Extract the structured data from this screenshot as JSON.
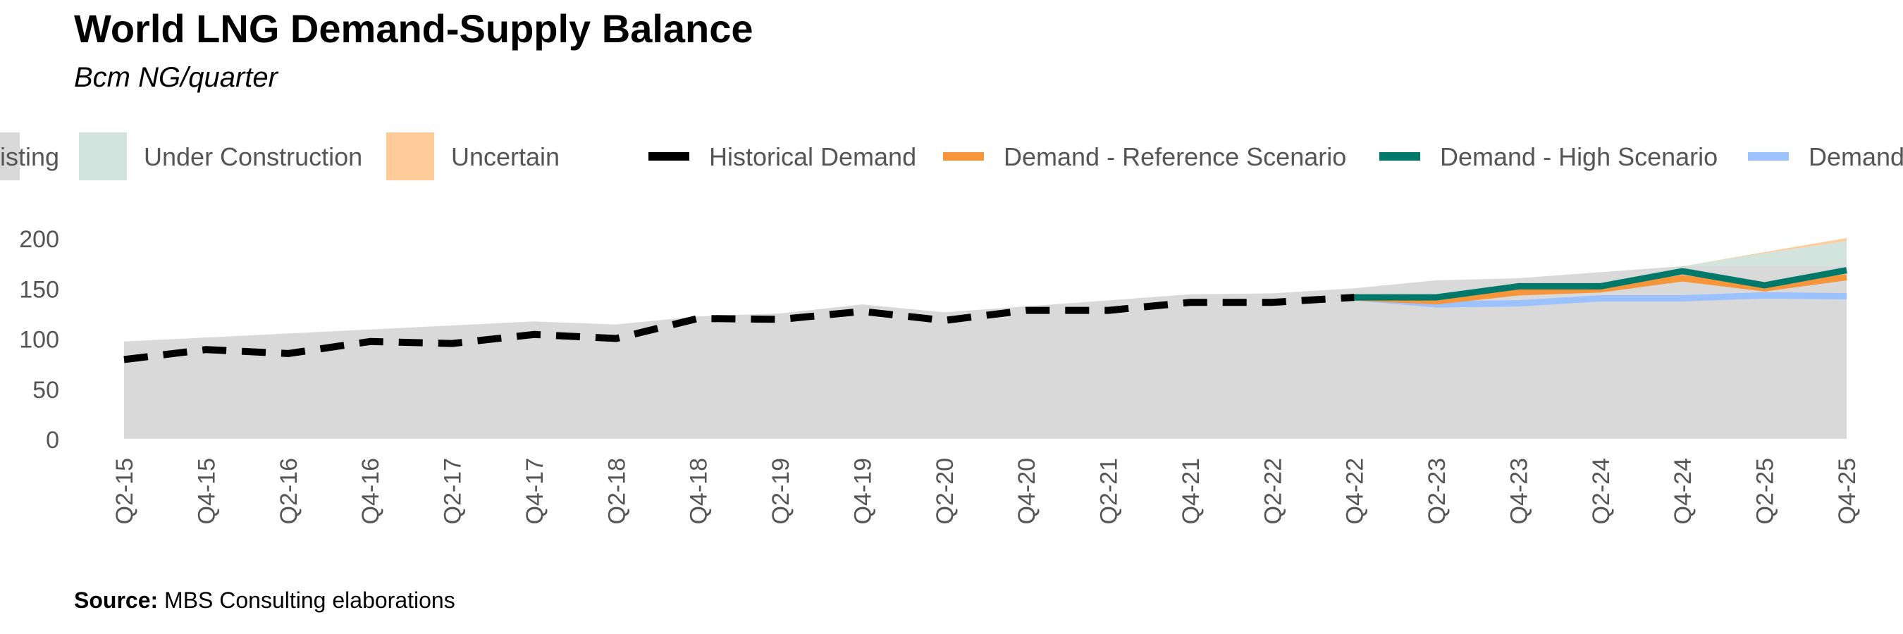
{
  "title": "World LNG Demand-Supply Balance",
  "subtitle": "Bcm NG/quarter",
  "source": {
    "label": "Source:",
    "text": "MBS Consulting elaborations"
  },
  "chart_data": {
    "type": "area",
    "ylim": [
      0,
      200
    ],
    "yticks": [
      0,
      50,
      100,
      150,
      200
    ],
    "grid": false,
    "legend_position": "top",
    "categories": [
      "Q2-15",
      "Q4-15",
      "Q2-16",
      "Q4-16",
      "Q2-17",
      "Q4-17",
      "Q2-18",
      "Q4-18",
      "Q2-19",
      "Q4-19",
      "Q2-20",
      "Q4-20",
      "Q2-21",
      "Q4-21",
      "Q2-22",
      "Q4-22",
      "Q2-23",
      "Q4-23",
      "Q2-24",
      "Q4-24",
      "Q2-25",
      "Q4-25"
    ],
    "legend": [
      {
        "label": "Existing",
        "kind": "area",
        "color": "#d9d9d9"
      },
      {
        "label": "Under Construction",
        "kind": "area",
        "color": "#d2e4dd"
      },
      {
        "label": "Uncertain",
        "kind": "area",
        "color": "#ffcc99"
      },
      {
        "label": "Historical Demand",
        "kind": "line",
        "color": "#000000"
      },
      {
        "label": "Demand - Reference Scenario",
        "kind": "line",
        "color": "#f7953b"
      },
      {
        "label": "Demand - High Scenario",
        "kind": "line",
        "color": "#00796b"
      },
      {
        "label": "Demand",
        "kind": "line",
        "color": "#9cc1ff"
      }
    ],
    "supply": {
      "existing": [
        97,
        101,
        105,
        109,
        113,
        117,
        114,
        122,
        125,
        134,
        126,
        132,
        138,
        144,
        145,
        150,
        158,
        160,
        166,
        172,
        172,
        172
      ],
      "under_construction_top": [
        97,
        101,
        105,
        109,
        113,
        117,
        114,
        122,
        125,
        134,
        126,
        132,
        138,
        144,
        145,
        150,
        158,
        160,
        166,
        172,
        185,
        197
      ],
      "uncertain_top": [
        97,
        101,
        105,
        109,
        113,
        117,
        114,
        122,
        125,
        134,
        126,
        132,
        138,
        144,
        145,
        150,
        158,
        160,
        166,
        172,
        186,
        200
      ]
    },
    "series": [
      {
        "name": "Historical Demand",
        "color": "#000000",
        "dash": true,
        "values": [
          79,
          89,
          85,
          97,
          95,
          104,
          100,
          120,
          119,
          127,
          118,
          128,
          128,
          136,
          136,
          141,
          null,
          null,
          null,
          null,
          null,
          null
        ]
      },
      {
        "name": "Demand",
        "color": "#9cc1ff",
        "dash": false,
        "values": [
          null,
          null,
          null,
          null,
          null,
          null,
          null,
          null,
          null,
          null,
          null,
          null,
          null,
          null,
          null,
          141,
          134,
          135,
          140,
          140,
          143,
          142
        ]
      },
      {
        "name": "Demand - Reference Scenario",
        "color": "#f7953b",
        "dash": false,
        "values": [
          null,
          null,
          null,
          null,
          null,
          null,
          null,
          null,
          null,
          null,
          null,
          null,
          null,
          null,
          null,
          141,
          137,
          146,
          149,
          160,
          150,
          161
        ]
      },
      {
        "name": "Demand - High Scenario",
        "color": "#00796b",
        "dash": false,
        "values": [
          null,
          null,
          null,
          null,
          null,
          null,
          null,
          null,
          null,
          null,
          null,
          null,
          null,
          null,
          null,
          141,
          141,
          152,
          152,
          167,
          153,
          168
        ]
      }
    ]
  }
}
